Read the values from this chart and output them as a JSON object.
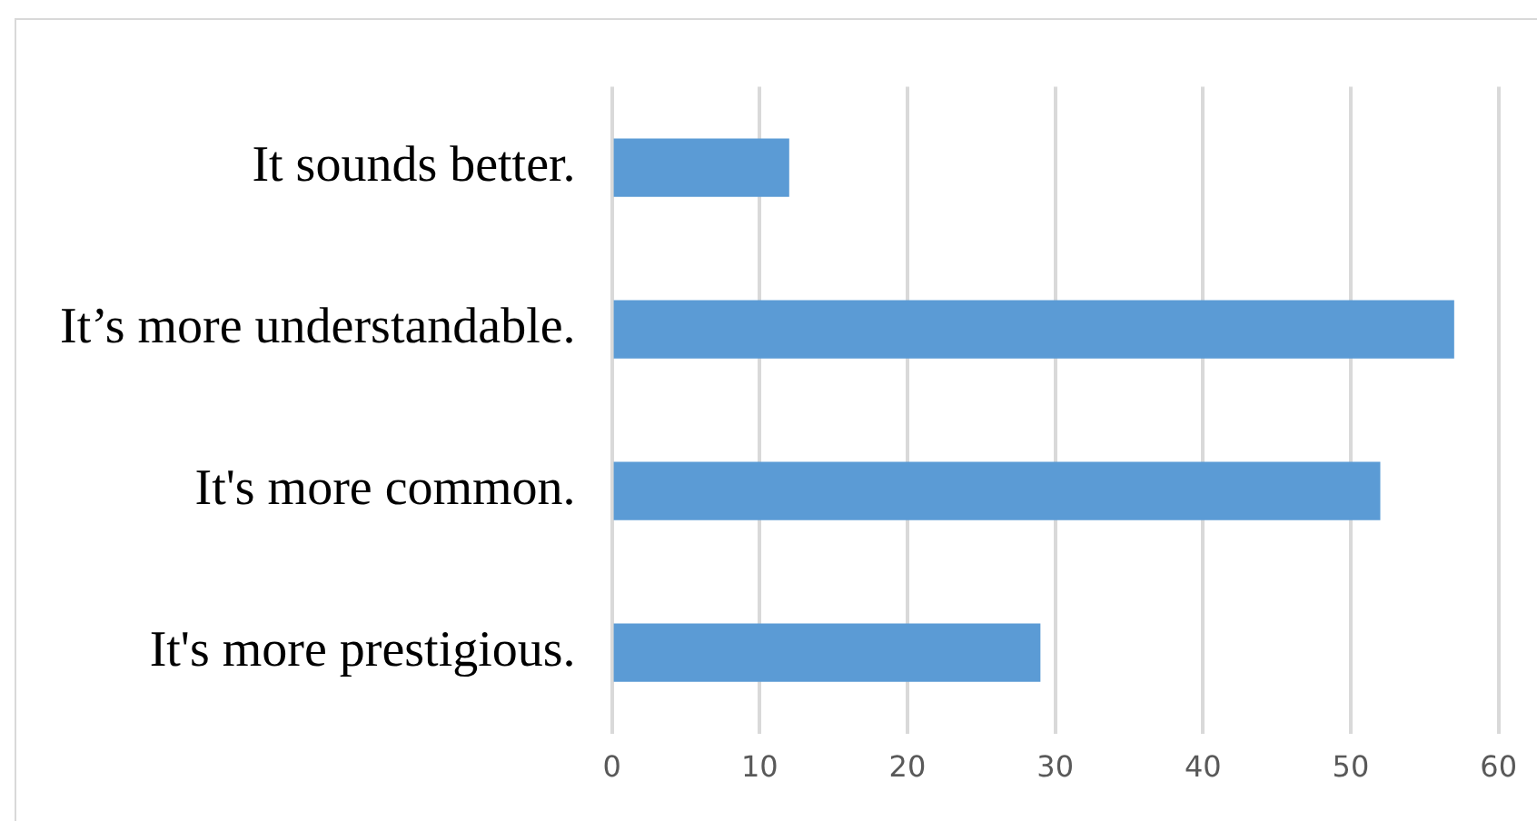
{
  "chart_data": {
    "type": "bar",
    "orientation": "horizontal",
    "categories": [
      "It sounds better.",
      "It’s more understandable.",
      "It's more common.",
      "It's more prestigious."
    ],
    "values": [
      12,
      57,
      52,
      29
    ],
    "color": "#5b9bd5",
    "xlim": [
      0,
      60
    ],
    "xticks": [
      0,
      10,
      20,
      30,
      40,
      50,
      60
    ],
    "grid": "x"
  }
}
